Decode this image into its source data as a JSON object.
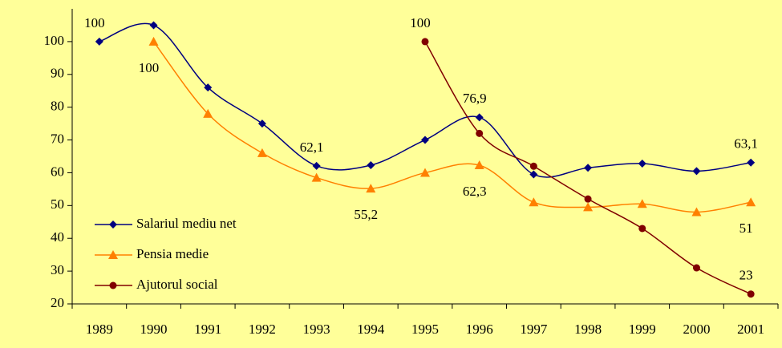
{
  "chart_data": {
    "type": "line",
    "categories": [
      "1989",
      "1990",
      "1991",
      "1992",
      "1993",
      "1994",
      "1995",
      "1996",
      "1997",
      "1998",
      "1999",
      "2000",
      "2001"
    ],
    "series": [
      {
        "name": "Salariul mediu net",
        "color": "#000080",
        "marker": "diamond",
        "values": [
          100,
          105,
          86,
          75,
          62.1,
          62.3,
          70,
          76.9,
          59.5,
          61.5,
          62.8,
          60.5,
          63.1
        ],
        "value_labels": [
          "100",
          null,
          null,
          null,
          "62,1",
          null,
          null,
          "76,9",
          null,
          null,
          null,
          null,
          "63,1"
        ]
      },
      {
        "name": "Pensia medie",
        "color": "#ff8000",
        "marker": "triangle",
        "values": [
          null,
          100,
          78,
          66,
          58.5,
          55.2,
          60,
          62.3,
          51,
          49.5,
          50.5,
          48,
          51
        ],
        "value_labels": [
          null,
          "100",
          null,
          null,
          null,
          "55,2",
          null,
          "62,3",
          null,
          null,
          null,
          null,
          "51"
        ]
      },
      {
        "name": "Ajutorul social",
        "color": "#800000",
        "marker": "circle",
        "values": [
          null,
          null,
          null,
          null,
          null,
          null,
          100,
          72,
          62,
          52,
          43,
          31,
          23
        ],
        "value_labels": [
          null,
          null,
          null,
          null,
          null,
          null,
          "100",
          null,
          null,
          null,
          null,
          null,
          "23"
        ]
      }
    ],
    "ylim": [
      20,
      110
    ],
    "yticks": [
      20,
      30,
      40,
      50,
      60,
      70,
      80,
      90,
      100
    ],
    "grid": false,
    "legend": "lower left",
    "background": "#ffff99"
  }
}
